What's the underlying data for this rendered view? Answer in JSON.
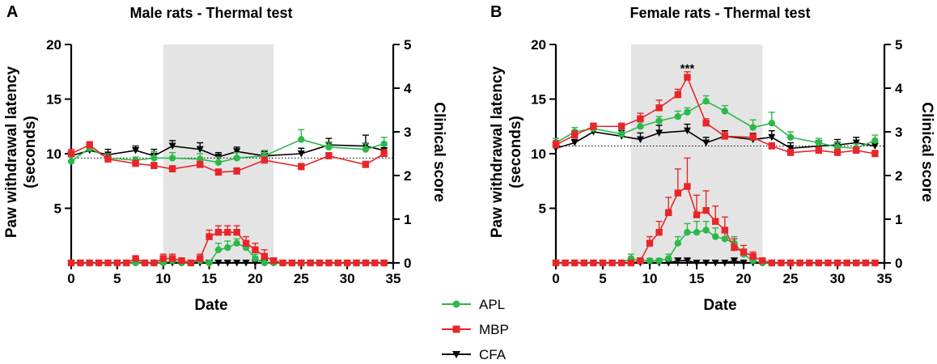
{
  "legend": [
    {
      "name": "APL",
      "color": "#2db84a",
      "marker": "circle"
    },
    {
      "name": "MBP",
      "color": "#e8262a",
      "marker": "square"
    },
    {
      "name": "CFA",
      "color": "#000000",
      "marker": "triangle-down"
    }
  ],
  "chart_data": [
    {
      "type": "line",
      "panel": "A",
      "title": "Male rats - Thermal test",
      "xlabel": "Date",
      "ylabel": "Paw withdrawal latency (seconds)",
      "ylabel_lines": [
        "Paw withdrawal latency",
        "(seconds)"
      ],
      "y2label": "Clinical score",
      "xlim": [
        0,
        35
      ],
      "xticks": [
        "0",
        "5",
        "10",
        "15",
        "20",
        "25",
        "30",
        "35"
      ],
      "ylim": [
        0,
        20
      ],
      "yticks": [
        "5",
        "10",
        "15",
        "20"
      ],
      "y2lim": [
        0,
        5
      ],
      "y2ticks": [
        "0",
        "1",
        "2",
        "3",
        "4",
        "5"
      ],
      "shaded_region": [
        10,
        22
      ],
      "baseline_latency": 9.6,
      "latency_series": [
        {
          "name": "APL",
          "x": [
            0,
            2,
            4,
            7,
            9,
            11,
            14,
            16,
            18,
            21,
            25,
            28,
            32,
            34
          ],
          "y": [
            9.3,
            10.5,
            9.6,
            9.4,
            9.6,
            9.6,
            9.5,
            9.2,
            9.6,
            9.8,
            11.3,
            10.6,
            10.4,
            10.9
          ],
          "err": [
            0.4,
            0.4,
            0.4,
            0.3,
            0.6,
            0.5,
            0.5,
            0.5,
            0.5,
            0.5,
            0.9,
            0.4,
            0.5,
            0.6
          ]
        },
        {
          "name": "MBP",
          "x": [
            0,
            2,
            4,
            7,
            9,
            11,
            14,
            16,
            18,
            21,
            25,
            28,
            32,
            34
          ],
          "y": [
            10.0,
            10.8,
            9.5,
            9.1,
            8.9,
            8.6,
            9.0,
            8.3,
            8.4,
            9.4,
            8.8,
            9.8,
            9.0,
            10.0
          ],
          "err": [
            0.4,
            0.3,
            0.3,
            0.3,
            0.3,
            0.3,
            0.3,
            0.3,
            0.3,
            0.3,
            0.3,
            0.3,
            0.3,
            0.4
          ]
        },
        {
          "name": "CFA",
          "x": [
            0,
            2,
            4,
            7,
            9,
            11,
            14,
            16,
            18,
            21,
            25,
            28,
            32,
            34
          ],
          "y": [
            9.8,
            10.3,
            9.9,
            10.3,
            9.8,
            10.7,
            10.4,
            9.7,
            10.2,
            9.8,
            10.0,
            10.8,
            10.7,
            10.3
          ],
          "err": [
            0.4,
            0.4,
            0.5,
            0.4,
            0.6,
            0.5,
            0.6,
            0.4,
            0.4,
            0.4,
            0.5,
            0.6,
            1.0,
            0.5
          ]
        }
      ],
      "score_series": [
        {
          "name": "APL",
          "x": [
            0,
            1,
            2,
            3,
            4,
            5,
            6,
            7,
            8,
            9,
            10,
            11,
            12,
            13,
            14,
            15,
            16,
            17,
            18,
            19,
            20,
            21,
            22,
            23,
            24,
            25,
            26,
            27,
            28,
            29,
            30,
            31,
            32,
            33,
            34
          ],
          "y": [
            0,
            0,
            0,
            0,
            0,
            0,
            0,
            0,
            0,
            0,
            0,
            0.05,
            0,
            0,
            0.05,
            0,
            0.3,
            0.35,
            0.45,
            0.35,
            0.1,
            0,
            0,
            0,
            0,
            0,
            0,
            0,
            0,
            0,
            0,
            0,
            0,
            0,
            0
          ],
          "err": [
            0,
            0,
            0,
            0,
            0,
            0,
            0,
            0,
            0,
            0,
            0,
            0.05,
            0,
            0,
            0.1,
            0,
            0.15,
            0.15,
            0.1,
            0.15,
            0.1,
            0,
            0,
            0,
            0,
            0,
            0,
            0,
            0,
            0,
            0,
            0,
            0,
            0,
            0
          ]
        },
        {
          "name": "MBP",
          "x": [
            0,
            1,
            2,
            3,
            4,
            5,
            6,
            7,
            8,
            9,
            10,
            11,
            12,
            13,
            14,
            15,
            16,
            17,
            18,
            19,
            20,
            21,
            22,
            23,
            24,
            25,
            26,
            27,
            28,
            29,
            30,
            31,
            32,
            33,
            34
          ],
          "y": [
            0,
            0,
            0,
            0,
            0,
            0,
            0,
            0.1,
            0,
            0,
            0.1,
            0.1,
            0.05,
            0,
            0.1,
            0.6,
            0.7,
            0.7,
            0.7,
            0.45,
            0.3,
            0.15,
            0.05,
            0,
            0,
            0,
            0,
            0,
            0,
            0,
            0,
            0,
            0,
            0,
            0
          ],
          "err": [
            0,
            0,
            0,
            0,
            0,
            0,
            0,
            0,
            0,
            0,
            0.1,
            0.1,
            0.05,
            0,
            0.1,
            0.15,
            0.15,
            0.15,
            0.15,
            0.15,
            0.15,
            0.15,
            0.05,
            0,
            0,
            0,
            0,
            0,
            0,
            0,
            0,
            0,
            0,
            0,
            0
          ]
        },
        {
          "name": "CFA",
          "x": [
            0,
            1,
            2,
            3,
            4,
            5,
            6,
            7,
            8,
            9,
            10,
            11,
            12,
            13,
            14,
            15,
            16,
            17,
            18,
            19,
            20,
            21,
            22,
            23,
            24,
            25,
            26,
            27,
            28,
            29,
            30,
            31,
            32,
            33,
            34
          ],
          "y": [
            0,
            0,
            0,
            0,
            0,
            0,
            0,
            0,
            0,
            0,
            0,
            0,
            0,
            0,
            0,
            0,
            0,
            0,
            0,
            0,
            0,
            0,
            0,
            0,
            0,
            0,
            0,
            0,
            0,
            0,
            0,
            0,
            0,
            0,
            0
          ],
          "err": [
            0,
            0,
            0,
            0,
            0,
            0,
            0,
            0,
            0,
            0,
            0,
            0,
            0,
            0,
            0,
            0,
            0,
            0,
            0,
            0,
            0,
            0,
            0,
            0,
            0,
            0,
            0,
            0,
            0,
            0,
            0,
            0,
            0,
            0,
            0
          ]
        }
      ]
    },
    {
      "type": "line",
      "panel": "B",
      "title": "Female rats - Thermal test",
      "xlabel": "Date",
      "ylabel": "Paw withdrawal latency (seconds)",
      "ylabel_lines": [
        "Paw withdrawal latency",
        "(seconds)"
      ],
      "y2label": "Clinical score",
      "xlim": [
        0,
        35
      ],
      "xticks": [
        "0",
        "5",
        "10",
        "15",
        "20",
        "25",
        "30",
        "35"
      ],
      "ylim": [
        0,
        20
      ],
      "yticks": [
        "5",
        "10",
        "15",
        "20"
      ],
      "y2lim": [
        0,
        5
      ],
      "y2ticks": [
        "0",
        "1",
        "2",
        "3",
        "4",
        "5"
      ],
      "shaded_region": [
        8,
        22
      ],
      "baseline_latency": 10.7,
      "annotations": [
        {
          "text": "***",
          "x": 14,
          "y": 17.8
        }
      ],
      "latency_series": [
        {
          "name": "APL",
          "x": [
            0,
            2,
            4,
            7,
            9,
            11,
            13,
            14,
            16,
            18,
            21,
            23,
            25,
            28,
            30,
            32,
            34
          ],
          "y": [
            11.0,
            12.0,
            12.3,
            11.8,
            12.5,
            13.0,
            13.4,
            13.8,
            14.8,
            13.9,
            12.4,
            12.8,
            11.5,
            11.0,
            10.6,
            10.5,
            11.2
          ],
          "err": [
            0.4,
            0.4,
            0.4,
            0.4,
            0.4,
            0.4,
            0.5,
            0.4,
            0.5,
            0.5,
            0.7,
            1.0,
            0.5,
            0.4,
            0.4,
            0.4,
            0.5
          ]
        },
        {
          "name": "MBP",
          "x": [
            0,
            2,
            4,
            7,
            9,
            11,
            13,
            14,
            16,
            18,
            21,
            23,
            25,
            28,
            30,
            32,
            34
          ],
          "y": [
            10.8,
            11.7,
            12.5,
            12.5,
            13.2,
            14.2,
            15.4,
            17.0,
            12.8,
            11.6,
            11.5,
            10.7,
            10.1,
            10.3,
            10.1,
            10.3,
            10.0
          ],
          "err": [
            0.4,
            0.4,
            0.3,
            0.3,
            0.5,
            0.7,
            0.5,
            0.5,
            0.4,
            0.4,
            0.4,
            0.3,
            0.3,
            0.3,
            0.3,
            0.3,
            0.3
          ]
        },
        {
          "name": "CFA",
          "x": [
            0,
            2,
            4,
            7,
            9,
            11,
            14,
            16,
            18,
            21,
            23,
            25,
            28,
            30,
            32,
            34
          ],
          "y": [
            10.5,
            11.0,
            12.0,
            11.6,
            11.3,
            11.9,
            12.1,
            11.0,
            11.6,
            11.3,
            11.5,
            10.5,
            10.7,
            10.8,
            11.0,
            10.7
          ],
          "err": [
            0.4,
            0.3,
            0.5,
            0.5,
            0.6,
            0.7,
            0.6,
            0.5,
            0.5,
            0.5,
            0.6,
            0.5,
            0.5,
            0.5,
            0.5,
            0.5
          ]
        }
      ],
      "score_series": [
        {
          "name": "APL",
          "x": [
            0,
            1,
            2,
            3,
            4,
            5,
            6,
            7,
            8,
            9,
            10,
            11,
            12,
            13,
            14,
            15,
            16,
            17,
            18,
            19,
            20,
            21,
            22,
            23,
            24,
            25,
            26,
            27,
            28,
            29,
            30,
            31,
            32,
            33,
            34
          ],
          "y": [
            0,
            0,
            0,
            0,
            0,
            0,
            0,
            0,
            0.1,
            0.05,
            0.05,
            0.05,
            0.1,
            0.45,
            0.7,
            0.7,
            0.75,
            0.6,
            0.55,
            0.45,
            0.2,
            0.05,
            0,
            0,
            0,
            0,
            0,
            0,
            0,
            0,
            0,
            0,
            0,
            0,
            0
          ],
          "err": [
            0,
            0,
            0,
            0,
            0,
            0,
            0,
            0,
            0.1,
            0.05,
            0.05,
            0.05,
            0.1,
            0.15,
            0.2,
            0.25,
            0.2,
            0.2,
            0.15,
            0.15,
            0.1,
            0.05,
            0,
            0,
            0,
            0,
            0,
            0,
            0,
            0,
            0,
            0,
            0,
            0,
            0
          ]
        },
        {
          "name": "MBP",
          "x": [
            0,
            1,
            2,
            3,
            4,
            5,
            6,
            7,
            8,
            9,
            10,
            11,
            12,
            13,
            14,
            15,
            16,
            17,
            18,
            19,
            20,
            21,
            22,
            23,
            24,
            25,
            26,
            27,
            28,
            29,
            30,
            31,
            32,
            33,
            34
          ],
          "y": [
            0,
            0,
            0,
            0,
            0,
            0,
            0,
            0,
            0,
            0.05,
            0.45,
            0.7,
            1.15,
            1.6,
            1.75,
            1.1,
            1.2,
            0.95,
            0.75,
            0.35,
            0.25,
            0.15,
            0.05,
            0,
            0,
            0,
            0,
            0,
            0,
            0,
            0,
            0,
            0,
            0,
            0
          ],
          "err": [
            0,
            0,
            0,
            0,
            0,
            0,
            0,
            0,
            0,
            0.05,
            0.15,
            0.25,
            0.35,
            0.55,
            0.65,
            0.45,
            0.45,
            0.35,
            0.3,
            0.2,
            0.15,
            0.1,
            0.05,
            0,
            0,
            0,
            0,
            0,
            0,
            0,
            0,
            0,
            0,
            0,
            0
          ]
        },
        {
          "name": "CFA",
          "x": [
            0,
            1,
            2,
            3,
            4,
            5,
            6,
            7,
            8,
            9,
            10,
            11,
            12,
            13,
            14,
            15,
            16,
            17,
            18,
            19,
            20,
            21,
            22,
            23,
            24,
            25,
            26,
            27,
            28,
            29,
            30,
            31,
            32,
            33,
            34
          ],
          "y": [
            0,
            0,
            0,
            0,
            0,
            0,
            0,
            0,
            0,
            0,
            0,
            0,
            0,
            0.05,
            0.05,
            0,
            0,
            0,
            0,
            0.05,
            0,
            0,
            0,
            0,
            0,
            0,
            0,
            0,
            0,
            0,
            0,
            0,
            0,
            0,
            0
          ],
          "err": [
            0,
            0,
            0,
            0,
            0,
            0,
            0,
            0,
            0,
            0,
            0,
            0,
            0,
            0.05,
            0.05,
            0,
            0,
            0,
            0,
            0.05,
            0,
            0,
            0,
            0,
            0,
            0,
            0,
            0,
            0,
            0,
            0,
            0,
            0,
            0,
            0
          ]
        }
      ]
    }
  ]
}
